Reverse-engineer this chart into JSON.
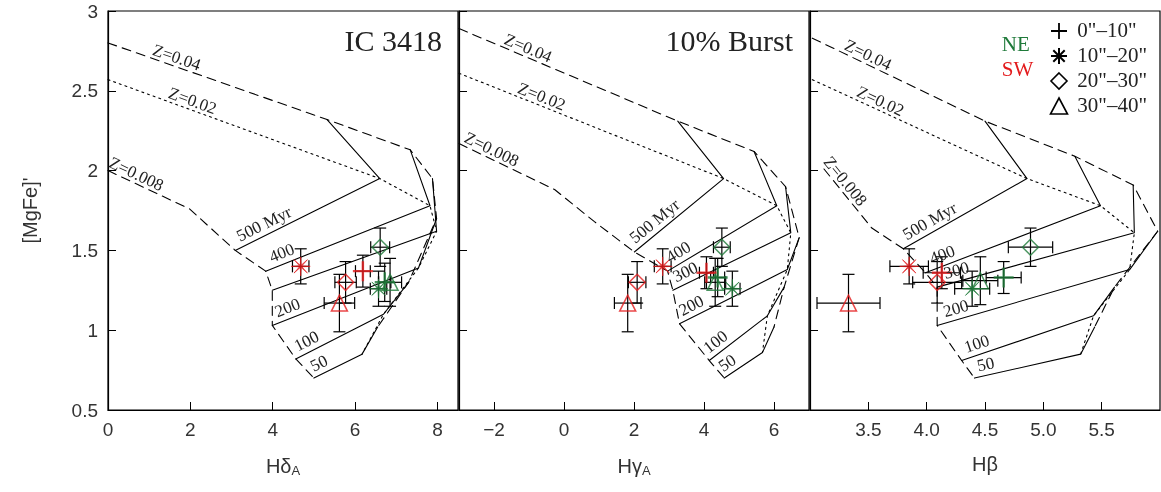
{
  "chart_data": [
    {
      "type": "scatter",
      "title": "IC 3418",
      "xlabel": "Hδ$_{A}$",
      "ylabel": "[MgFe]'",
      "xlim": [
        0,
        8.5
      ],
      "xticks": [
        0,
        2,
        4,
        6,
        8
      ],
      "ylim": [
        0.5,
        3.0
      ],
      "yticks": [
        0.5,
        1.0,
        1.5,
        2.0,
        2.5,
        3.0
      ],
      "series": [
        {
          "type": "line",
          "name": "Z=0.04",
          "color": "#000000",
          "line_style": "dashed",
          "x": [
            0,
            5.32,
            7.34,
            7.88,
            7.98,
            7.3,
            6.55
          ],
          "values": [
            2.8,
            2.32,
            2.13,
            1.95,
            1.7,
            1.3,
            1.02
          ]
        },
        {
          "type": "line",
          "name": "Z=0.02",
          "color": "#000000",
          "line_style": "dotted",
          "x": [
            0,
            6.6,
            7.82,
            7.98,
            7.54,
            6.69,
            6.17
          ],
          "values": [
            2.57,
            1.95,
            1.78,
            1.62,
            1.39,
            1.1,
            0.85
          ]
        },
        {
          "type": "line",
          "name": "Z=0.008",
          "color": "#000000",
          "line_style": "dashed",
          "x": [
            0,
            1.98,
            3.09,
            3.83,
            3.99,
            3.99,
            4.56,
            5.0
          ],
          "values": [
            2.0,
            1.76,
            1.5,
            1.37,
            1.25,
            1.03,
            0.82,
            0.7
          ]
        },
        {
          "type": "line",
          "name": "500 Myr",
          "color": "#000000",
          "line_style": "solid",
          "x": [
            3.09,
            6.6,
            5.32
          ],
          "values": [
            1.5,
            1.95,
            2.32
          ]
        },
        {
          "type": "line",
          "name": "400",
          "color": "#000000",
          "line_style": "solid",
          "x": [
            3.83,
            7.82,
            7.34
          ],
          "values": [
            1.37,
            1.78,
            2.13
          ]
        },
        {
          "type": "line",
          "color": "#000000",
          "line_style": "solid",
          "x": [
            3.99,
            7.98,
            7.88
          ],
          "values": [
            1.25,
            1.62,
            1.95
          ]
        },
        {
          "type": "line",
          "name": "200",
          "color": "#000000",
          "line_style": "solid",
          "x": [
            3.99,
            7.54,
            7.98
          ],
          "values": [
            1.03,
            1.39,
            1.7
          ]
        },
        {
          "type": "line",
          "name": "100",
          "color": "#000000",
          "line_style": "solid",
          "x": [
            4.56,
            6.69,
            7.3
          ],
          "values": [
            0.82,
            1.1,
            1.3
          ]
        },
        {
          "type": "line",
          "name": "50",
          "color": "#000000",
          "line_style": "solid",
          "x": [
            5.0,
            6.17,
            6.55
          ],
          "values": [
            0.7,
            0.85,
            1.02
          ]
        },
        {
          "color": "#1f7a3a",
          "marker": "cross",
          "x": [
            6.72
          ],
          "values": [
            1.3
          ],
          "xerrors": [
            0.15
          ],
          "errors": [
            0.12
          ]
        },
        {
          "color": "#e31a1c",
          "marker": "cross",
          "x": [
            6.19
          ],
          "values": [
            1.37
          ],
          "xerrors": [
            0.18
          ],
          "errors": [
            0.1
          ]
        },
        {
          "color": "#1f7a3a",
          "marker": "star",
          "x": [
            6.57
          ],
          "values": [
            1.26
          ],
          "xerrors": [
            0.2
          ],
          "errors": [
            0.11
          ]
        },
        {
          "color": "#e31a1c",
          "marker": "star",
          "x": [
            4.68
          ],
          "values": [
            1.4
          ],
          "xerrors": [
            0.2
          ],
          "errors": [
            0.11
          ]
        },
        {
          "color": "#1f7a3a",
          "marker": "diamond",
          "x": [
            6.61
          ],
          "values": [
            1.52
          ],
          "xerrors": [
            0.23
          ],
          "errors": [
            0.12
          ]
        },
        {
          "color": "#e31a1c",
          "marker": "diamond",
          "x": [
            5.77
          ],
          "values": [
            1.3
          ],
          "xerrors": [
            0.26
          ],
          "errors": [
            0.13
          ]
        },
        {
          "color": "#1f7a3a",
          "marker": "triangle",
          "x": [
            6.85
          ],
          "values": [
            1.3
          ],
          "xerrors": [
            0.28
          ],
          "errors": [
            0.15
          ]
        },
        {
          "color": "#e31a1c",
          "marker": "triangle",
          "x": [
            5.62
          ],
          "values": [
            1.17
          ],
          "xerrors": [
            0.37
          ],
          "errors": [
            0.18
          ]
        }
      ]
    },
    {
      "type": "scatter",
      "title": "10% Burst",
      "xlabel": "Hγ$_{A}$",
      "xlim": [
        -3,
        7
      ],
      "xticks": [
        {
          "value": -2,
          "label": "−2"
        },
        0,
        2,
        4,
        6
      ],
      "ylim": [
        0.5,
        3.0
      ],
      "yticks": [
        0.5,
        1.0,
        1.5,
        2.0,
        2.5,
        3.0
      ],
      "tick_labels": "x",
      "series": [
        {
          "type": "line",
          "name": "Z=0.04",
          "color": "#000000",
          "line_style": "dashed",
          "x": [
            -3.0,
            3.25,
            5.43,
            6.33,
            6.72,
            6.29,
            6.0
          ],
          "values": [
            2.89,
            2.31,
            2.12,
            1.9,
            1.58,
            1.27,
            1.02
          ]
        },
        {
          "type": "line",
          "name": "Z=0.02",
          "color": "#000000",
          "line_style": "dotted",
          "x": [
            -3.0,
            4.56,
            6.08,
            6.48,
            6.38,
            5.81,
            5.67
          ],
          "values": [
            2.61,
            1.95,
            1.78,
            1.61,
            1.38,
            1.09,
            0.86
          ]
        },
        {
          "type": "line",
          "name": "Z=0.008",
          "color": "#000000",
          "line_style": "dashed",
          "x": [
            -3.0,
            -0.26,
            0.87,
            2.01,
            2.96,
            3.11,
            3.3,
            4.15,
            4.58
          ],
          "values": [
            2.17,
            1.88,
            1.68,
            1.49,
            1.37,
            1.25,
            1.04,
            0.81,
            0.7
          ]
        },
        {
          "type": "line",
          "name": "500 Myr",
          "color": "#000000",
          "line_style": "solid",
          "x": [
            2.01,
            4.56,
            3.25
          ],
          "values": [
            1.49,
            1.95,
            2.31
          ]
        },
        {
          "type": "line",
          "name": "400",
          "color": "#000000",
          "line_style": "solid",
          "x": [
            2.96,
            6.08,
            5.43
          ],
          "values": [
            1.37,
            1.78,
            2.12
          ]
        },
        {
          "type": "line",
          "name": "300",
          "color": "#000000",
          "line_style": "solid",
          "x": [
            3.11,
            6.48,
            6.33
          ],
          "values": [
            1.25,
            1.61,
            1.9
          ]
        },
        {
          "type": "line",
          "name": "200",
          "color": "#000000",
          "line_style": "solid",
          "x": [
            3.3,
            6.38,
            6.72
          ],
          "values": [
            1.04,
            1.38,
            1.58
          ]
        },
        {
          "type": "line",
          "name": "100",
          "color": "#000000",
          "line_style": "solid",
          "x": [
            4.15,
            5.81,
            6.29
          ],
          "values": [
            0.81,
            1.09,
            1.27
          ]
        },
        {
          "type": "line",
          "name": "50",
          "color": "#000000",
          "line_style": "solid",
          "x": [
            4.58,
            5.67,
            6.0
          ],
          "values": [
            0.7,
            0.86,
            1.02
          ]
        },
        {
          "color": "#1f7a3a",
          "marker": "cross",
          "x": [
            4.39
          ],
          "values": [
            1.33
          ],
          "xerrors": [
            0.2
          ],
          "errors": [
            0.12
          ]
        },
        {
          "color": "#e31a1c",
          "marker": "cross",
          "x": [
            4.07
          ],
          "values": [
            1.36
          ],
          "xerrors": [
            0.2
          ],
          "errors": [
            0.1
          ]
        },
        {
          "color": "#1f7a3a",
          "marker": "star",
          "x": [
            4.81
          ],
          "values": [
            1.26
          ],
          "xerrors": [
            0.22
          ],
          "errors": [
            0.11
          ]
        },
        {
          "color": "#e31a1c",
          "marker": "star",
          "x": [
            2.82
          ],
          "values": [
            1.4
          ],
          "xerrors": [
            0.24
          ],
          "errors": [
            0.11
          ]
        },
        {
          "color": "#1f7a3a",
          "marker": "diamond",
          "x": [
            4.51
          ],
          "values": [
            1.52
          ],
          "xerrors": [
            0.24
          ],
          "errors": [
            0.12
          ]
        },
        {
          "color": "#e31a1c",
          "marker": "diamond",
          "x": [
            2.09
          ],
          "values": [
            1.3
          ],
          "xerrors": [
            0.25
          ],
          "errors": [
            0.13
          ]
        },
        {
          "color": "#1f7a3a",
          "marker": "triangle",
          "x": [
            4.32
          ],
          "values": [
            1.3
          ],
          "xerrors": [
            0.3
          ],
          "errors": [
            0.15
          ]
        },
        {
          "color": "#e31a1c",
          "marker": "triangle",
          "x": [
            1.82
          ],
          "values": [
            1.17
          ],
          "xerrors": [
            0.38
          ],
          "errors": [
            0.18
          ]
        }
      ]
    },
    {
      "type": "scatter",
      "xlabel": "Hβ",
      "xlim": [
        3.0,
        6.0
      ],
      "xticks": [
        3.5,
        {
          "value": 4,
          "label": "4.0"
        },
        4.5,
        {
          "value": 5,
          "label": "5.0"
        },
        5.5
      ],
      "ylim": [
        0.5,
        3.0
      ],
      "yticks": [
        0.5,
        1.0,
        1.5,
        2.0,
        2.5,
        3.0
      ],
      "tick_labels": "x",
      "annotations": [
        "NE",
        "SW",
        "0\"–10\"",
        "10\"–20\"",
        "20\"–30\"",
        "30\"–40\""
      ],
      "series": [
        {
          "type": "line",
          "name": "Z=0.04",
          "color": "#000000",
          "line_style": "dashed",
          "x": [
            3.02,
            4.5,
            5.27,
            5.77,
            5.98,
            5.61,
            5.44
          ],
          "values": [
            2.83,
            2.31,
            2.09,
            1.91,
            1.62,
            1.27,
            1.02
          ]
        },
        {
          "type": "line",
          "name": "Z=0.02",
          "color": "#000000",
          "line_style": "dotted",
          "x": [
            3.02,
            4.86,
            5.49,
            5.78,
            5.74,
            5.43,
            5.32
          ],
          "values": [
            2.57,
            1.95,
            1.78,
            1.61,
            1.38,
            1.09,
            0.85
          ]
        },
        {
          "type": "line",
          "name": "Z=0.008",
          "color": "#000000",
          "line_style": "dashed",
          "x": [
            3.12,
            3.53,
            3.8,
            3.99,
            4.09,
            4.09,
            4.3,
            4.41
          ],
          "values": [
            2.01,
            1.64,
            1.51,
            1.36,
            1.27,
            1.03,
            0.81,
            0.7
          ]
        },
        {
          "type": "line",
          "name": "500 Myr",
          "color": "#000000",
          "line_style": "solid",
          "x": [
            3.8,
            4.86,
            4.5
          ],
          "values": [
            1.51,
            1.95,
            2.31
          ]
        },
        {
          "type": "line",
          "name": "400",
          "color": "#000000",
          "line_style": "solid",
          "x": [
            3.99,
            5.49,
            5.27
          ],
          "values": [
            1.36,
            1.78,
            2.09
          ]
        },
        {
          "type": "line",
          "name": "300",
          "color": "#000000",
          "line_style": "solid",
          "x": [
            4.09,
            5.78,
            5.77
          ],
          "values": [
            1.27,
            1.61,
            1.91
          ]
        },
        {
          "type": "line",
          "name": "200",
          "color": "#000000",
          "line_style": "solid",
          "x": [
            4.09,
            5.74,
            5.98
          ],
          "values": [
            1.03,
            1.38,
            1.62
          ]
        },
        {
          "type": "line",
          "name": "100",
          "color": "#000000",
          "line_style": "solid",
          "x": [
            4.3,
            5.43,
            5.61
          ],
          "values": [
            0.81,
            1.09,
            1.27
          ]
        },
        {
          "type": "line",
          "name": "50",
          "color": "#000000",
          "line_style": "solid",
          "x": [
            4.41,
            5.32,
            5.44
          ],
          "values": [
            0.7,
            0.85,
            1.02
          ]
        },
        {
          "color": "#1f7a3a",
          "marker": "cross",
          "x": [
            4.66
          ],
          "values": [
            1.33
          ],
          "xerrors": [
            0.15
          ],
          "errors": [
            0.1
          ]
        },
        {
          "color": "#e31a1c",
          "marker": "cross",
          "x": [
            4.13
          ],
          "values": [
            1.36
          ],
          "xerrors": [
            0.16
          ],
          "errors": [
            0.1
          ]
        },
        {
          "color": "#1f7a3a",
          "marker": "star",
          "x": [
            4.39
          ],
          "values": [
            1.26
          ],
          "xerrors": [
            0.15
          ],
          "errors": [
            0.11
          ]
        },
        {
          "color": "#e31a1c",
          "marker": "star",
          "x": [
            3.85
          ],
          "values": [
            1.4
          ],
          "xerrors": [
            0.165
          ],
          "errors": [
            0.11
          ]
        },
        {
          "color": "#1f7a3a",
          "marker": "diamond",
          "x": [
            4.89
          ],
          "values": [
            1.52
          ],
          "xerrors": [
            0.19
          ],
          "errors": [
            0.12
          ]
        },
        {
          "color": "#e31a1c",
          "marker": "diamond",
          "x": [
            4.09
          ],
          "values": [
            1.3
          ],
          "xerrors": [
            0.21
          ],
          "errors": [
            0.13
          ]
        },
        {
          "color": "#1f7a3a",
          "marker": "triangle",
          "x": [
            4.46
          ],
          "values": [
            1.31
          ],
          "xerrors": [
            0.15
          ],
          "errors": [
            0.15
          ]
        },
        {
          "color": "#e31a1c",
          "marker": "triangle",
          "x": [
            3.33
          ],
          "values": [
            1.17
          ],
          "xerrors": [
            0.27
          ],
          "errors": [
            0.18
          ]
        }
      ]
    }
  ]
}
